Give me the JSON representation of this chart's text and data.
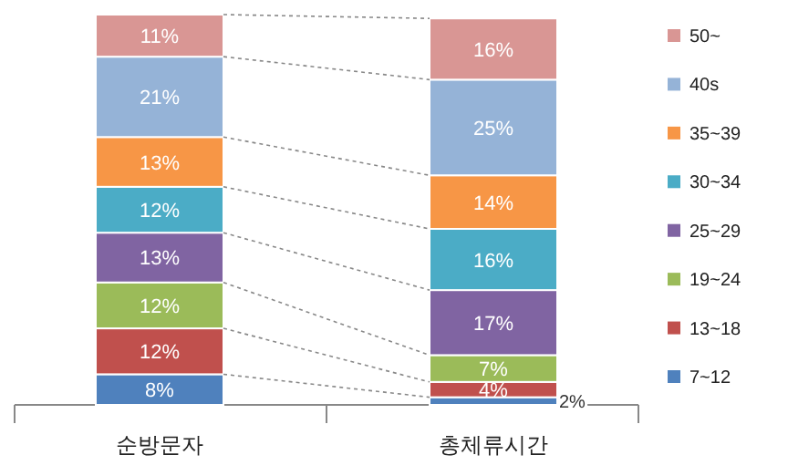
{
  "chart_data": {
    "type": "bar",
    "stacked": true,
    "categories": [
      "순방문자",
      "총체류시간"
    ],
    "legend": "right",
    "series": [
      {
        "name": "7~12",
        "color": "#4f81bd",
        "values": [
          8,
          2
        ],
        "value_labels": [
          "8%",
          "2%"
        ]
      },
      {
        "name": "13~18",
        "color": "#c0504d",
        "values": [
          12,
          4
        ],
        "value_labels": [
          "12%",
          "4%"
        ]
      },
      {
        "name": "19~24",
        "color": "#9bbb59",
        "values": [
          12,
          7
        ],
        "value_labels": [
          "12%",
          "7%"
        ]
      },
      {
        "name": "25~29",
        "color": "#8064a2",
        "values": [
          13,
          17
        ],
        "value_labels": [
          "13%",
          "17%"
        ]
      },
      {
        "name": "30~34",
        "color": "#4bacc6",
        "values": [
          12,
          16
        ],
        "value_labels": [
          "12%",
          "16%"
        ]
      },
      {
        "name": "35~39",
        "color": "#f79646",
        "values": [
          13,
          14
        ],
        "value_labels": [
          "13%",
          "14%"
        ]
      },
      {
        "name": "40s",
        "color": "#95b3d7",
        "values": [
          21,
          25
        ],
        "value_labels": [
          "21%",
          "25%"
        ]
      },
      {
        "name": "50~",
        "color": "#d99694",
        "values": [
          11,
          16
        ],
        "value_labels": [
          "11%",
          "16%"
        ]
      }
    ]
  }
}
